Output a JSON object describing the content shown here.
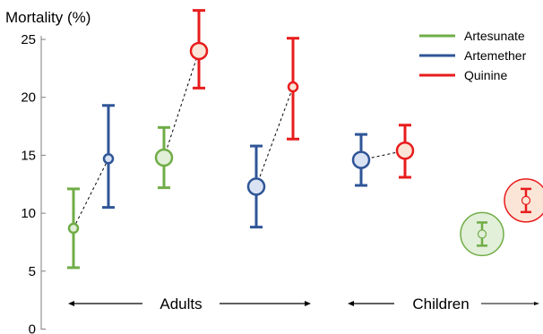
{
  "chart_data": {
    "type": "scatter",
    "title": "",
    "ylabel": "Mortality (%)",
    "ylim": [
      0,
      25
    ],
    "yticks": [
      0,
      5,
      10,
      15,
      20,
      25
    ],
    "grid": false,
    "legend_position": "top-right",
    "colors": {
      "Artesunate": "#70ad47",
      "Artemether": "#2f5597",
      "Quinine": "#e81c1c"
    },
    "legend": [
      "Artesunate",
      "Artemether",
      "Quinine"
    ],
    "groups": [
      "Adults",
      "Children"
    ],
    "points": [
      {
        "group": "Adults",
        "series": "Artesunate",
        "y": 8.7,
        "low": 5.3,
        "high": 12.1,
        "size": "small"
      },
      {
        "group": "Adults",
        "series": "Artemether",
        "y": 14.7,
        "low": 10.5,
        "high": 19.3,
        "size": "small"
      },
      {
        "group": "Adults",
        "series": "Artesunate",
        "y": 14.8,
        "low": 12.2,
        "high": 17.4,
        "size": "medium"
      },
      {
        "group": "Adults",
        "series": "Quinine",
        "y": 24.0,
        "low": 20.8,
        "high": 27.5,
        "size": "medium"
      },
      {
        "group": "Adults",
        "series": "Artemether",
        "y": 12.3,
        "low": 8.8,
        "high": 15.8,
        "size": "medium"
      },
      {
        "group": "Adults",
        "series": "Quinine",
        "y": 20.9,
        "low": 16.4,
        "high": 25.1,
        "size": "small"
      },
      {
        "group": "Children",
        "series": "Artemether",
        "y": 14.6,
        "low": 12.4,
        "high": 16.8,
        "size": "medium"
      },
      {
        "group": "Children",
        "series": "Quinine",
        "y": 15.4,
        "low": 13.1,
        "high": 17.6,
        "size": "medium"
      },
      {
        "group": "Children",
        "series": "Artesunate",
        "y": 8.2,
        "low": 7.2,
        "high": 9.2,
        "size": "large"
      },
      {
        "group": "Children",
        "series": "Quinine",
        "y": 11.1,
        "low": 10.1,
        "high": 12.1,
        "size": "large"
      }
    ],
    "connections": [
      [
        0,
        1
      ],
      [
        2,
        3
      ],
      [
        4,
        5
      ],
      [
        6,
        7
      ]
    ]
  }
}
